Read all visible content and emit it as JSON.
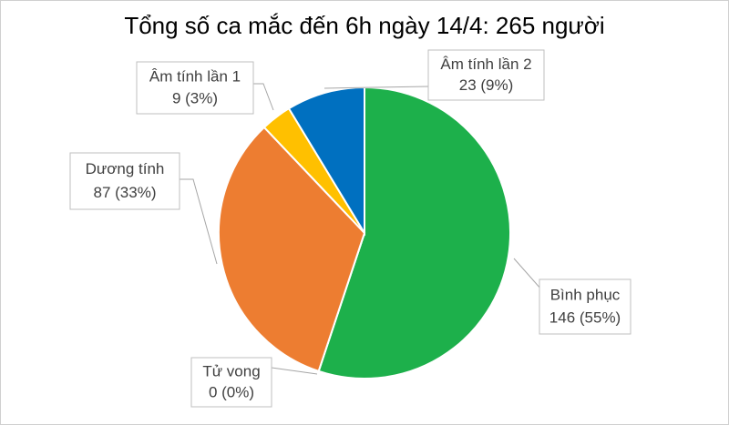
{
  "chart_data": {
    "type": "pie",
    "title": "Tổng số ca mắc đến 6h ngày 14/4: 265 người",
    "categories": [
      "Bình phục",
      "Tử vong",
      "Dương tính",
      "Âm tính lần 1",
      "Âm tính lần 2"
    ],
    "values": [
      146,
      0,
      87,
      9,
      23
    ],
    "value_labels": [
      "146 (55%)",
      "0 (0%)",
      "87 (33%)",
      "9 (3%)",
      "23 (9%)"
    ],
    "colors": [
      "#1db04b",
      "#7f7f7f",
      "#ed7d31",
      "#ffc000",
      "#0070c0"
    ]
  }
}
